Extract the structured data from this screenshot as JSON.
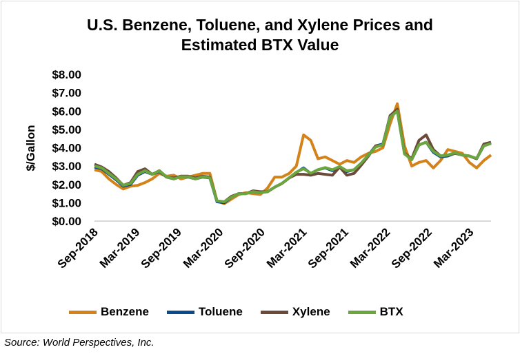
{
  "chart_data": {
    "type": "line",
    "title_lines": [
      "U.S. Benzene, Toluene, and Xylene Prices and",
      "Estimated BTX Value"
    ],
    "ylabel": "$/Gallon",
    "ylim": [
      0,
      8
    ],
    "yticks": [
      "$0.00",
      "$1.00",
      "$2.00",
      "$3.00",
      "$4.00",
      "$5.00",
      "$6.00",
      "$7.00",
      "$8.00"
    ],
    "x_months_span": 57,
    "xticks": [
      {
        "label": "Sep-2018",
        "month": 0
      },
      {
        "label": "Mar-2019",
        "month": 6
      },
      {
        "label": "Sep-2019",
        "month": 12
      },
      {
        "label": "Mar-2020",
        "month": 18
      },
      {
        "label": "Sep-2020",
        "month": 24
      },
      {
        "label": "Mar-2021",
        "month": 30
      },
      {
        "label": "Sep-2021",
        "month": 36
      },
      {
        "label": "Mar-2022",
        "month": 42
      },
      {
        "label": "Sep-2022",
        "month": 48
      },
      {
        "label": "Mar-2023",
        "month": 54
      }
    ],
    "series": [
      {
        "name": "Benzene",
        "color": "#D4821A",
        "values": [
          2.8,
          2.7,
          2.3,
          2.0,
          1.75,
          1.9,
          1.95,
          2.1,
          2.3,
          2.6,
          2.45,
          2.5,
          2.3,
          2.4,
          2.5,
          2.6,
          2.6,
          1.1,
          0.95,
          1.2,
          1.45,
          1.55,
          1.5,
          1.45,
          1.8,
          2.4,
          2.4,
          2.6,
          3.0,
          4.7,
          4.4,
          3.4,
          3.5,
          3.3,
          3.1,
          3.3,
          3.2,
          3.5,
          3.7,
          3.8,
          4.0,
          5.3,
          6.4,
          4.1,
          3.0,
          3.2,
          3.3,
          2.9,
          3.3,
          3.9,
          3.8,
          3.7,
          3.2,
          2.9,
          3.3,
          3.6
        ]
      },
      {
        "name": "Toluene",
        "color": "#0B4A8B",
        "values": [
          2.95,
          2.85,
          2.55,
          2.25,
          1.9,
          2.0,
          2.5,
          2.7,
          2.55,
          2.7,
          2.4,
          2.3,
          2.45,
          2.4,
          2.3,
          2.4,
          2.35,
          1.05,
          1.0,
          1.3,
          1.5,
          1.5,
          1.6,
          1.55,
          1.6,
          1.85,
          2.05,
          2.35,
          2.65,
          2.9,
          2.6,
          2.8,
          2.9,
          2.75,
          2.95,
          2.7,
          2.8,
          3.15,
          3.6,
          4.1,
          4.2,
          5.7,
          6.0,
          3.7,
          3.35,
          4.15,
          4.3,
          3.75,
          3.5,
          3.55,
          3.7,
          3.6,
          3.55,
          3.4,
          4.1,
          4.25
        ]
      },
      {
        "name": "Xylene",
        "color": "#6B4A3A",
        "values": [
          3.1,
          2.95,
          2.7,
          2.35,
          1.95,
          2.1,
          2.7,
          2.85,
          2.55,
          2.75,
          2.4,
          2.35,
          2.45,
          2.45,
          2.35,
          2.45,
          2.4,
          1.1,
          1.05,
          1.35,
          1.5,
          1.5,
          1.65,
          1.6,
          1.6,
          1.85,
          2.05,
          2.35,
          2.55,
          2.55,
          2.5,
          2.6,
          2.55,
          2.5,
          2.95,
          2.5,
          2.6,
          3.05,
          3.55,
          4.1,
          4.15,
          5.75,
          6.1,
          3.7,
          3.4,
          4.4,
          4.7,
          3.9,
          3.55,
          3.6,
          3.7,
          3.6,
          3.55,
          3.4,
          4.2,
          4.3
        ]
      },
      {
        "name": "BTX",
        "color": "#6AA53E",
        "values": [
          3.0,
          2.9,
          2.6,
          2.3,
          1.95,
          2.05,
          2.55,
          2.75,
          2.55,
          2.74,
          2.42,
          2.3,
          2.42,
          2.42,
          2.3,
          2.42,
          2.36,
          1.1,
          1.05,
          1.3,
          1.5,
          1.5,
          1.6,
          1.55,
          1.6,
          1.85,
          2.05,
          2.36,
          2.67,
          2.86,
          2.61,
          2.8,
          2.92,
          2.8,
          2.98,
          2.74,
          2.8,
          3.17,
          3.6,
          4.04,
          4.16,
          5.66,
          6.0,
          3.66,
          3.35,
          4.16,
          4.3,
          3.8,
          3.55,
          3.6,
          3.73,
          3.6,
          3.55,
          3.42,
          4.1,
          4.23
        ]
      }
    ]
  },
  "source": "Source: World Perspectives, Inc."
}
